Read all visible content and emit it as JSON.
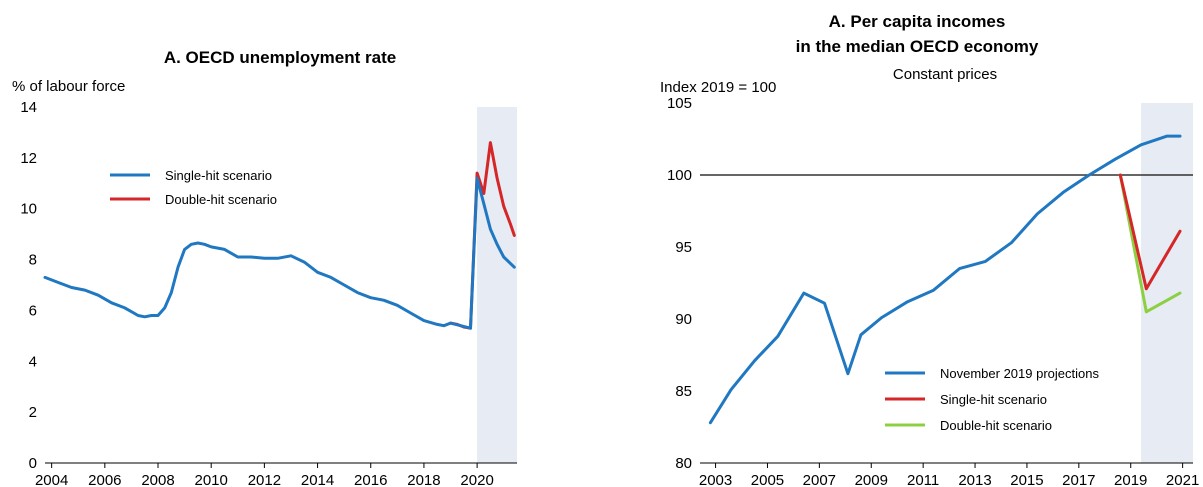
{
  "chart_data": [
    {
      "type": "line",
      "title": "A. OECD unemployment rate",
      "ylabel": "% of labour force",
      "ylim": [
        0,
        14
      ],
      "yticks": [
        "0",
        "2",
        "4",
        "6",
        "8",
        "10",
        "12",
        "14"
      ],
      "xticks": [
        "2004",
        "2006",
        "2008",
        "2010",
        "2012",
        "2014",
        "2016",
        "2018",
        "2020"
      ],
      "xlim": [
        2003.75,
        2021.5
      ],
      "shaded_region": [
        2020.0,
        2021.5
      ],
      "shade_color": "#e6ebf4",
      "legend_position": "upper-left",
      "series": [
        {
          "name": "Single-hit scenario",
          "color": "#1f78c1",
          "x": [
            2003.75,
            2004.25,
            2004.75,
            2005.25,
            2005.75,
            2006.25,
            2006.75,
            2007.25,
            2007.5,
            2007.75,
            2008.0,
            2008.25,
            2008.5,
            2008.75,
            2009.0,
            2009.25,
            2009.5,
            2009.75,
            2010.0,
            2010.5,
            2011.0,
            2011.5,
            2012.0,
            2012.5,
            2013.0,
            2013.5,
            2014.0,
            2014.5,
            2015.0,
            2015.5,
            2016.0,
            2016.5,
            2017.0,
            2017.5,
            2018.0,
            2018.5,
            2018.75,
            2019.0,
            2019.75,
            2020.0,
            2020.25,
            2020.5,
            2020.75,
            2021.0,
            2021.25,
            2021.4
          ],
          "y": [
            7.3,
            7.1,
            6.9,
            6.8,
            6.6,
            6.3,
            6.1,
            5.8,
            5.75,
            5.8,
            5.8,
            6.1,
            6.7,
            7.7,
            8.4,
            8.6,
            8.65,
            8.6,
            8.5,
            8.4,
            8.1,
            8.1,
            8.05,
            8.05,
            8.15,
            7.9,
            7.5,
            7.3,
            7.0,
            6.7,
            6.5,
            6.4,
            6.2,
            5.9,
            5.6,
            5.45,
            5.4,
            5.5,
            5.3,
            11.2,
            10.2,
            9.2,
            8.6,
            8.1,
            7.85,
            7.7
          ]
        },
        {
          "name": "Double-hit scenario",
          "color": "#d62728",
          "x": [
            2019.0,
            2019.25,
            2019.5,
            2019.75,
            2020.0,
            2020.25,
            2020.5,
            2020.75,
            2021.0,
            2021.25,
            2021.4
          ],
          "y": [
            5.5,
            5.45,
            5.35,
            5.3,
            11.4,
            10.6,
            12.6,
            11.2,
            10.1,
            9.4,
            8.95
          ]
        }
      ]
    },
    {
      "type": "line",
      "title_lines": [
        "A. Per capita incomes",
        "in the median OECD economy"
      ],
      "subtitle": "Constant prices",
      "ylabel": "Index 2019 = 100",
      "ylim": [
        80,
        105
      ],
      "yticks": [
        "80",
        "85",
        "90",
        "95",
        "100",
        "105"
      ],
      "xticks": [
        "2003",
        "2005",
        "2007",
        "2009",
        "2011",
        "2013",
        "2015",
        "2017",
        "2019",
        "2021"
      ],
      "xlim": [
        2002.4,
        2021.4
      ],
      "reference_line": 100,
      "shaded_region": [
        2019.4,
        2021.4
      ],
      "shade_color": "#e6ebf4",
      "legend_position": "lower-center",
      "series": [
        {
          "name": "November 2019 projections",
          "color": "#1f78c1",
          "x": [
            2002.8,
            2003.6,
            2004.5,
            2005.4,
            2006.4,
            2007.2,
            2008.1,
            2008.6,
            2009.4,
            2010.4,
            2011.4,
            2012.4,
            2013.4,
            2014.4,
            2015.4,
            2016.4,
            2017.4,
            2018.4,
            2019.4,
            2020.4,
            2020.9
          ],
          "y": [
            82.8,
            85.1,
            87.1,
            88.8,
            91.8,
            91.1,
            86.2,
            88.9,
            90.1,
            91.2,
            92.0,
            93.5,
            94.0,
            95.3,
            97.3,
            98.8,
            100.0,
            101.1,
            102.1,
            102.7,
            102.7
          ]
        },
        {
          "name": "Single-hit scenario",
          "color": "#d62728",
          "x": [
            2018.6,
            2019.6,
            2020.9
          ],
          "y": [
            100.0,
            92.1,
            96.1
          ]
        },
        {
          "name": "Double-hit scenario",
          "color": "#8cd042",
          "x": [
            2018.6,
            2019.6,
            2020.9
          ],
          "y": [
            100.0,
            90.5,
            91.8
          ]
        }
      ]
    }
  ]
}
